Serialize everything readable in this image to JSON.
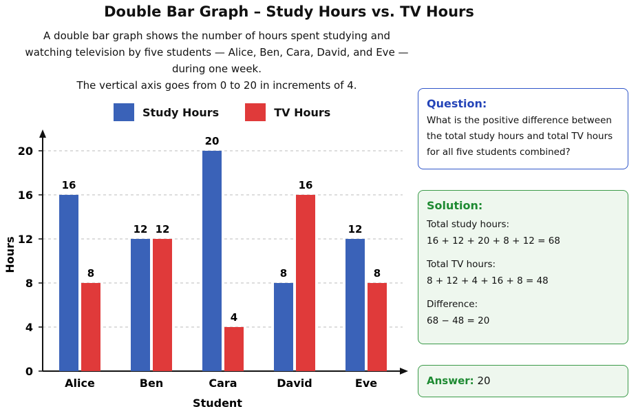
{
  "title": "Double Bar Graph – Study Hours vs. TV Hours",
  "description": [
    "A double bar graph shows the number of hours spent studying and",
    "watching television by five students — Alice, Ben, Cara, David, and Eve —",
    "during one week.",
    "The vertical axis goes from 0 to 20 in increments of 4."
  ],
  "chart_data": {
    "type": "bar",
    "categories": [
      "Alice",
      "Ben",
      "Cara",
      "David",
      "Eve"
    ],
    "series": [
      {
        "name": "Study Hours",
        "color": "#3a62b8",
        "values": [
          16,
          12,
          20,
          8,
          12
        ]
      },
      {
        "name": "TV Hours",
        "color": "#e03a3a",
        "values": [
          8,
          12,
          4,
          16,
          8
        ]
      }
    ],
    "xlabel": "Student",
    "ylabel": "Hours",
    "ylim": [
      0,
      20
    ],
    "yticks": [
      0,
      4,
      8,
      12,
      16,
      20
    ],
    "grid": true,
    "legend": "top"
  },
  "question": {
    "label": "Question:",
    "text": "What is the positive difference between the total study hours and total TV hours for all five students combined?"
  },
  "solution": {
    "label": "Solution:",
    "lines": [
      [
        "Total study hours:",
        "16 + 12 + 20 + 8 + 12 = 68"
      ],
      [
        "Total TV hours:",
        "8 + 12 + 4 + 16 + 8 = 48"
      ],
      [
        "Difference:",
        "68 − 48 = 20"
      ]
    ]
  },
  "answer": {
    "label": "Answer:",
    "value": "20"
  }
}
